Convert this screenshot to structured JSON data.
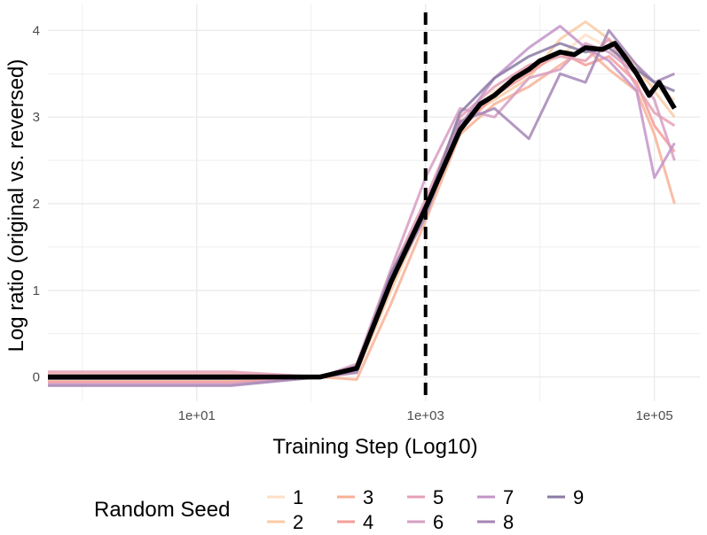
{
  "chart_data": {
    "type": "line",
    "x_scale": "log10",
    "xlabel": "Training Step (Log10)",
    "ylabel": "Log ratio (original vs. reversed)",
    "x_ticks": [
      10,
      1000,
      100000
    ],
    "x_tick_labels": [
      "1e+01",
      "1e+03",
      "1e+05"
    ],
    "y_ticks": [
      0,
      1,
      2,
      3,
      4
    ],
    "y_tick_labels": [
      "0",
      "1",
      "2",
      "3",
      "4"
    ],
    "xlim": [
      0.5,
      250000
    ],
    "ylim": [
      -0.28,
      4.3
    ],
    "grid": true,
    "vline": {
      "x": 1000,
      "style": "dashed",
      "color": "#000000"
    },
    "legend": {
      "title": "Random Seed",
      "position": "bottom",
      "labels": [
        "1",
        "2",
        "3",
        "4",
        "5",
        "6",
        "7",
        "8",
        "9"
      ]
    },
    "series_colors": [
      "#fde0c5",
      "#facba6",
      "#f8b195",
      "#f59e9a",
      "#e5a0b4",
      "#d69ec2",
      "#c394c9",
      "#a586b5",
      "#8a79a3"
    ],
    "mean_color": "#000000",
    "series": [
      {
        "name": "1",
        "values": [
          [
            0.5,
            0.0
          ],
          [
            20,
            0.0
          ],
          [
            120,
            0.0
          ],
          [
            250,
            0.08
          ],
          [
            500,
            1.05
          ],
          [
            1000,
            1.95
          ],
          [
            2000,
            2.9
          ],
          [
            4000,
            3.3
          ],
          [
            8000,
            3.55
          ],
          [
            15000,
            3.7
          ],
          [
            25000,
            3.95
          ],
          [
            40000,
            3.8
          ],
          [
            70000,
            3.5
          ],
          [
            100000,
            3.35
          ],
          [
            150000,
            3.2
          ]
        ]
      },
      {
        "name": "2",
        "values": [
          [
            0.5,
            -0.04
          ],
          [
            20,
            -0.04
          ],
          [
            120,
            0.0
          ],
          [
            250,
            0.05
          ],
          [
            500,
            1.0
          ],
          [
            1000,
            1.9
          ],
          [
            2000,
            2.95
          ],
          [
            4000,
            3.2
          ],
          [
            8000,
            3.45
          ],
          [
            15000,
            3.9
          ],
          [
            25000,
            4.1
          ],
          [
            40000,
            3.9
          ],
          [
            70000,
            3.6
          ],
          [
            100000,
            3.3
          ],
          [
            150000,
            3.0
          ]
        ]
      },
      {
        "name": "3",
        "values": [
          [
            0.5,
            0.03
          ],
          [
            20,
            0.03
          ],
          [
            120,
            0.0
          ],
          [
            250,
            -0.03
          ],
          [
            500,
            0.85
          ],
          [
            1000,
            1.8
          ],
          [
            2000,
            2.8
          ],
          [
            4000,
            3.15
          ],
          [
            8000,
            3.35
          ],
          [
            15000,
            3.6
          ],
          [
            25000,
            3.8
          ],
          [
            40000,
            3.55
          ],
          [
            70000,
            3.3
          ],
          [
            100000,
            2.8
          ],
          [
            150000,
            2.0
          ]
        ]
      },
      {
        "name": "4",
        "values": [
          [
            0.5,
            -0.06
          ],
          [
            20,
            -0.06
          ],
          [
            120,
            0.0
          ],
          [
            250,
            0.1
          ],
          [
            500,
            1.1
          ],
          [
            1000,
            1.95
          ],
          [
            2000,
            2.85
          ],
          [
            4000,
            3.25
          ],
          [
            8000,
            3.5
          ],
          [
            15000,
            3.75
          ],
          [
            25000,
            3.6
          ],
          [
            40000,
            3.7
          ],
          [
            70000,
            3.4
          ],
          [
            100000,
            2.9
          ],
          [
            150000,
            2.6
          ]
        ]
      },
      {
        "name": "5",
        "values": [
          [
            0.5,
            0.06
          ],
          [
            20,
            0.06
          ],
          [
            120,
            0.0
          ],
          [
            250,
            0.13
          ],
          [
            500,
            1.2
          ],
          [
            1000,
            2.05
          ],
          [
            2000,
            3.0
          ],
          [
            4000,
            3.35
          ],
          [
            8000,
            3.6
          ],
          [
            15000,
            3.7
          ],
          [
            25000,
            3.65
          ],
          [
            40000,
            3.9
          ],
          [
            70000,
            3.35
          ],
          [
            100000,
            3.05
          ],
          [
            150000,
            2.9
          ]
        ]
      },
      {
        "name": "6",
        "values": [
          [
            0.5,
            -0.08
          ],
          [
            20,
            -0.08
          ],
          [
            120,
            0.0
          ],
          [
            250,
            0.15
          ],
          [
            500,
            1.25
          ],
          [
            1000,
            2.3
          ],
          [
            2000,
            3.1
          ],
          [
            4000,
            3.0
          ],
          [
            8000,
            3.45
          ],
          [
            15000,
            3.55
          ],
          [
            25000,
            3.85
          ],
          [
            40000,
            3.75
          ],
          [
            70000,
            3.5
          ],
          [
            100000,
            3.2
          ],
          [
            150000,
            2.5
          ]
        ]
      },
      {
        "name": "7",
        "values": [
          [
            0.5,
            0.02
          ],
          [
            20,
            0.02
          ],
          [
            120,
            0.0
          ],
          [
            250,
            0.07
          ],
          [
            500,
            1.15
          ],
          [
            1000,
            2.0
          ],
          [
            2000,
            2.9
          ],
          [
            4000,
            3.45
          ],
          [
            8000,
            3.8
          ],
          [
            15000,
            4.05
          ],
          [
            25000,
            3.8
          ],
          [
            40000,
            3.65
          ],
          [
            70000,
            3.3
          ],
          [
            100000,
            2.3
          ],
          [
            150000,
            2.7
          ]
        ]
      },
      {
        "name": "8",
        "values": [
          [
            0.5,
            -0.1
          ],
          [
            20,
            -0.1
          ],
          [
            120,
            0.0
          ],
          [
            250,
            0.05
          ],
          [
            500,
            1.1
          ],
          [
            1000,
            1.85
          ],
          [
            2000,
            2.95
          ],
          [
            4000,
            3.1
          ],
          [
            8000,
            2.75
          ],
          [
            15000,
            3.5
          ],
          [
            25000,
            3.4
          ],
          [
            40000,
            4.0
          ],
          [
            70000,
            3.6
          ],
          [
            100000,
            3.4
          ],
          [
            150000,
            3.5
          ]
        ]
      },
      {
        "name": "9",
        "values": [
          [
            0.5,
            -0.02
          ],
          [
            20,
            -0.02
          ],
          [
            120,
            0.0
          ],
          [
            250,
            0.12
          ],
          [
            500,
            1.2
          ],
          [
            1000,
            1.95
          ],
          [
            2000,
            3.05
          ],
          [
            4000,
            3.45
          ],
          [
            8000,
            3.7
          ],
          [
            15000,
            3.85
          ],
          [
            25000,
            3.75
          ],
          [
            40000,
            3.8
          ],
          [
            70000,
            3.55
          ],
          [
            100000,
            3.4
          ],
          [
            150000,
            3.3
          ]
        ]
      }
    ],
    "mean_series": [
      [
        0.5,
        0.0
      ],
      [
        20,
        0.0
      ],
      [
        120,
        0.0
      ],
      [
        250,
        0.1
      ],
      [
        500,
        1.1
      ],
      [
        1000,
        1.95
      ],
      [
        2000,
        2.85
      ],
      [
        3000,
        3.15
      ],
      [
        4000,
        3.25
      ],
      [
        6000,
        3.45
      ],
      [
        8000,
        3.55
      ],
      [
        10000,
        3.65
      ],
      [
        15000,
        3.75
      ],
      [
        20000,
        3.72
      ],
      [
        25000,
        3.8
      ],
      [
        35000,
        3.78
      ],
      [
        45000,
        3.85
      ],
      [
        55000,
        3.7
      ],
      [
        70000,
        3.5
      ],
      [
        90000,
        3.25
      ],
      [
        110000,
        3.4
      ],
      [
        150000,
        3.1
      ]
    ]
  }
}
